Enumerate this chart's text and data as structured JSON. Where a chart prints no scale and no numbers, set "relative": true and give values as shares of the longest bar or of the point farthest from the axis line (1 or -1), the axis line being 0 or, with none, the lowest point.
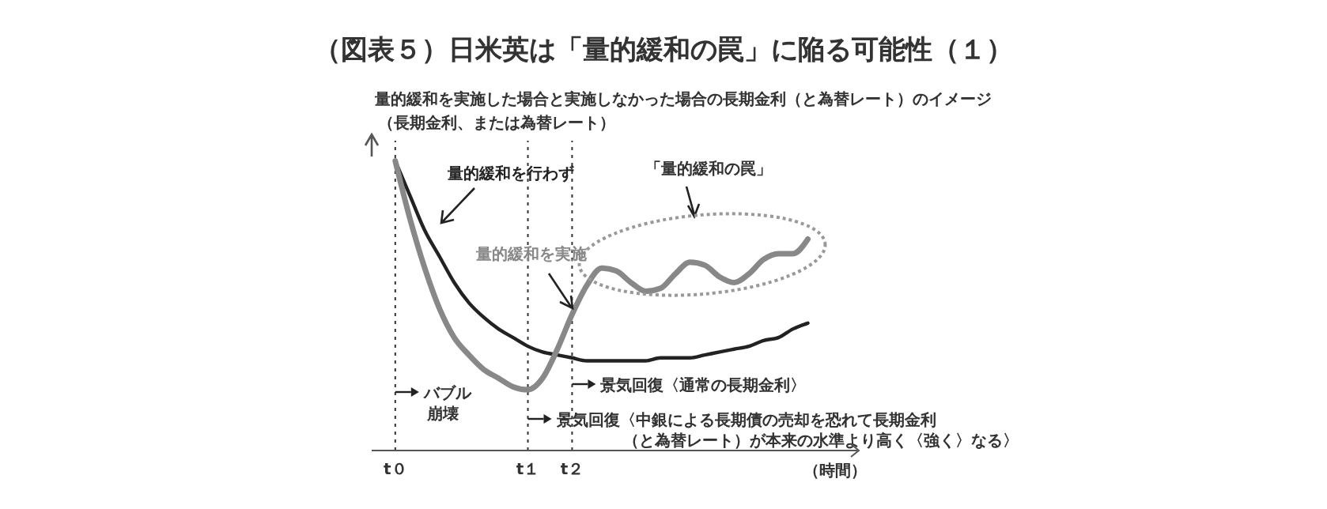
{
  "chart_data": {
    "type": "line",
    "title": "（図表５）日米英は「量的緩和の罠」に陥る可能性（１）",
    "subtitle": "量的緩和を実施した場合と実施しなかった場合の長期金利（と為替レート）のイメージ",
    "ylabel": "（長期金利、または為替レート）",
    "xlabel": "（時間）",
    "relative": true,
    "categories": [
      "t０",
      null,
      null,
      null,
      null,
      null,
      null,
      null,
      null,
      "t１",
      null,
      null,
      "t２",
      null,
      null,
      null,
      null,
      null,
      null,
      null,
      null,
      null,
      null,
      null,
      null,
      null,
      null,
      null,
      null,
      null
    ],
    "annotations": [
      "「量的緩和の罠」"
    ],
    "ref_lines": [
      {
        "axis": "x",
        "value": "t０",
        "label": "バブル崩壊",
        "line_style": "dotted"
      },
      {
        "axis": "x",
        "value": "t１",
        "label": "景気回復〈中銀による長期債の売却を恐れて長期金利（と為替レート）が本来の水準より高く〈強く〉なる〉",
        "line_style": "dotted"
      },
      {
        "axis": "x",
        "value": "t２",
        "label": "景気回復〈通常の長期金利〉",
        "line_style": "dotted"
      }
    ],
    "marker": "none",
    "line_style": "solid",
    "series": [
      {
        "name": "量的緩和を行わず",
        "color": "#222222",
        "values": [
          1,
          0.88,
          0.76,
          0.67,
          0.58,
          0.51,
          0.46,
          0.42,
          0.39,
          0.36,
          0.34,
          0.33,
          0.32,
          0.31,
          0.31,
          0.31,
          0.31,
          0.31,
          0.32,
          0.32,
          0.32,
          0.33,
          0.34,
          0.35,
          0.36,
          0.38,
          0.39,
          0.42,
          0.44,
          null
        ]
      },
      {
        "name": "量的緩和を実施",
        "color": "#888888",
        "values": [
          1,
          0.8,
          0.63,
          0.49,
          0.39,
          0.33,
          0.28,
          0.25,
          0.22,
          0.21,
          0.25,
          0.35,
          0.47,
          0.57,
          0.63,
          0.62,
          0.58,
          0.55,
          0.56,
          0.61,
          0.65,
          0.64,
          0.6,
          0.58,
          0.61,
          0.66,
          0.68,
          0.68,
          0.73,
          null
        ]
      }
    ]
  }
}
